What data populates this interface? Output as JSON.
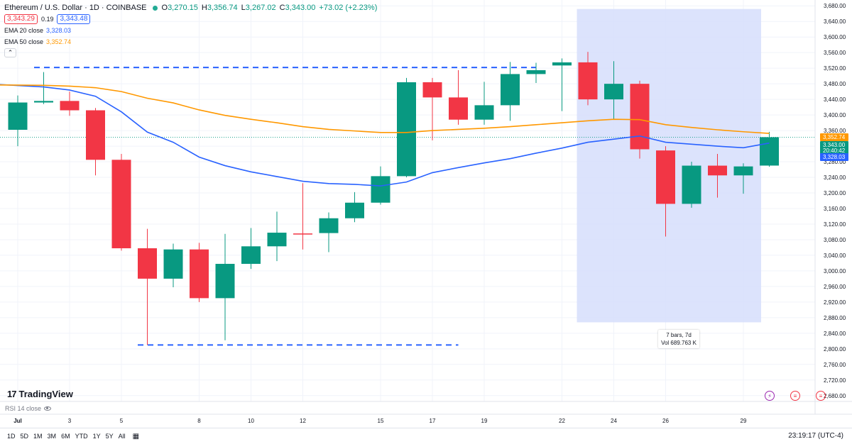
{
  "header": {
    "title": "Ethereum / U.S. Dollar · 1D · COINBASE",
    "ohlc": [
      {
        "key": "O",
        "value": "3,270.15"
      },
      {
        "key": "H",
        "value": "3,356.74"
      },
      {
        "key": "L",
        "value": "3,267.02"
      },
      {
        "key": "C",
        "value": "3,343.00"
      }
    ],
    "change": "+73.02 (+2.23%)",
    "bid": "3,343.29",
    "spread": "0.19",
    "ask": "3,343.48",
    "ema20_label": "EMA 20 close",
    "ema20_value": "3,328.03",
    "ema50_label": "EMA 50 close",
    "ema50_value": "3,352.74",
    "collapse_icon": "chevron-up-icon"
  },
  "colors": {
    "up": "#089981",
    "down": "#f23645",
    "ema20": "#2962ff",
    "ema50": "#ff9800",
    "selection": "#d6defc",
    "dashed": "#2962ff"
  },
  "chart_data": {
    "type": "candlestick",
    "symbol": "Ethereum / U.S. Dollar",
    "interval": "1D",
    "exchange": "COINBASE",
    "y_ticks": [
      2680,
      2720,
      2760,
      2800,
      2840,
      2880,
      2920,
      2960,
      3000,
      3040,
      3080,
      3120,
      3160,
      3200,
      3240,
      3280,
      3320,
      3360,
      3400,
      3440,
      3480,
      3520,
      3560,
      3600,
      3640,
      3680
    ],
    "ylim": [
      2665,
      3695
    ],
    "x_tick_labels": [
      {
        "label": "Jul",
        "bar": 0
      },
      {
        "label": "3",
        "bar": 2
      },
      {
        "label": "5",
        "bar": 4
      },
      {
        "label": "8",
        "bar": 7
      },
      {
        "label": "10",
        "bar": 9
      },
      {
        "label": "12",
        "bar": 11
      },
      {
        "label": "15",
        "bar": 14
      },
      {
        "label": "17",
        "bar": 16
      },
      {
        "label": "19",
        "bar": 18
      },
      {
        "label": "22",
        "bar": 21
      },
      {
        "label": "24",
        "bar": 23
      },
      {
        "label": "26",
        "bar": 25
      },
      {
        "label": "29",
        "bar": 28
      }
    ],
    "candles": [
      {
        "o": 3362,
        "h": 3450,
        "l": 3320,
        "c": 3432
      },
      {
        "o": 3432,
        "h": 3510,
        "l": 3428,
        "c": 3436
      },
      {
        "o": 3436,
        "h": 3460,
        "l": 3398,
        "c": 3412
      },
      {
        "o": 3412,
        "h": 3418,
        "l": 3245,
        "c": 3285
      },
      {
        "o": 3285,
        "h": 3300,
        "l": 3052,
        "c": 3058
      },
      {
        "o": 3058,
        "h": 3108,
        "l": 2810,
        "c": 2980
      },
      {
        "o": 2980,
        "h": 3070,
        "l": 2958,
        "c": 3055
      },
      {
        "o": 3055,
        "h": 3072,
        "l": 2920,
        "c": 2930
      },
      {
        "o": 2930,
        "h": 3095,
        "l": 2822,
        "c": 3018
      },
      {
        "o": 3018,
        "h": 3110,
        "l": 3005,
        "c": 3063
      },
      {
        "o": 3063,
        "h": 3152,
        "l": 3025,
        "c": 3098
      },
      {
        "o": 3096,
        "h": 3225,
        "l": 3055,
        "c": 3094
      },
      {
        "o": 3097,
        "h": 3150,
        "l": 3048,
        "c": 3135
      },
      {
        "o": 3135,
        "h": 3202,
        "l": 3125,
        "c": 3175
      },
      {
        "o": 3175,
        "h": 3268,
        "l": 3170,
        "c": 3243
      },
      {
        "o": 3243,
        "h": 3495,
        "l": 3240,
        "c": 3484
      },
      {
        "o": 3484,
        "h": 3495,
        "l": 3335,
        "c": 3445
      },
      {
        "o": 3445,
        "h": 3515,
        "l": 3375,
        "c": 3388
      },
      {
        "o": 3388,
        "h": 3485,
        "l": 3375,
        "c": 3425
      },
      {
        "o": 3425,
        "h": 3536,
        "l": 3385,
        "c": 3505
      },
      {
        "o": 3505,
        "h": 3534,
        "l": 3482,
        "c": 3515
      },
      {
        "o": 3527,
        "h": 3545,
        "l": 3410,
        "c": 3535
      },
      {
        "o": 3535,
        "h": 3562,
        "l": 3425,
        "c": 3440
      },
      {
        "o": 3440,
        "h": 3538,
        "l": 3388,
        "c": 3480
      },
      {
        "o": 3480,
        "h": 3488,
        "l": 3288,
        "c": 3312
      },
      {
        "o": 3309,
        "h": 3320,
        "l": 3088,
        "c": 3172
      },
      {
        "o": 3172,
        "h": 3280,
        "l": 3162,
        "c": 3270
      },
      {
        "o": 3270,
        "h": 3300,
        "l": 3188,
        "c": 3245
      },
      {
        "o": 3245,
        "h": 3276,
        "l": 3198,
        "c": 3268
      },
      {
        "o": 3270.15,
        "h": 3356.74,
        "l": 3267.02,
        "c": 3343.0
      }
    ],
    "series": [
      {
        "name": "EMA 20 close",
        "values": [
          3478,
          3472,
          3464,
          3448,
          3408,
          3356,
          3330,
          3292,
          3270,
          3254,
          3242,
          3230,
          3224,
          3222,
          3218,
          3228,
          3252,
          3265,
          3277,
          3288,
          3302,
          3315,
          3330,
          3338,
          3346,
          3330,
          3325,
          3320,
          3316,
          3328
        ]
      },
      {
        "name": "EMA 50 close",
        "values": [
          3477,
          3476,
          3474,
          3470,
          3460,
          3443,
          3431,
          3413,
          3399,
          3389,
          3380,
          3370,
          3363,
          3359,
          3355,
          3355,
          3360,
          3363,
          3366,
          3370,
          3375,
          3380,
          3385,
          3389,
          3388,
          3375,
          3368,
          3362,
          3357,
          3352.74
        ]
      }
    ],
    "price_lines": [
      {
        "label": "3,352.74",
        "color": "#ff9800"
      },
      {
        "label": "3,343.00",
        "color": "#089981"
      },
      {
        "label": "20:40:42",
        "color": "#089981"
      },
      {
        "label": "3,328.03",
        "color": "#2962ff"
      }
    ],
    "levels": [
      {
        "value": 3522,
        "from_bar": 1,
        "to_bar": 20
      },
      {
        "value": 2810,
        "from_bar": 5,
        "to_bar": 17
      }
    ],
    "selection": {
      "from_bar": 22,
      "to_bar": 29,
      "low": 2868,
      "high": 3672,
      "bars_label": "7 bars, 7d",
      "vol_label": "Vol 689.763 K"
    },
    "indicator_pane_label": "RSI 14 close"
  },
  "branding": {
    "logo": "TradingView",
    "logo_mark": "17"
  },
  "bottom_bar": {
    "ranges": [
      "1D",
      "5D",
      "1M",
      "3M",
      "6M",
      "YTD",
      "1Y",
      "5Y",
      "All"
    ],
    "calendar_icon": "calendar-icon",
    "clock": "23:19:17 (UTC-4)"
  }
}
